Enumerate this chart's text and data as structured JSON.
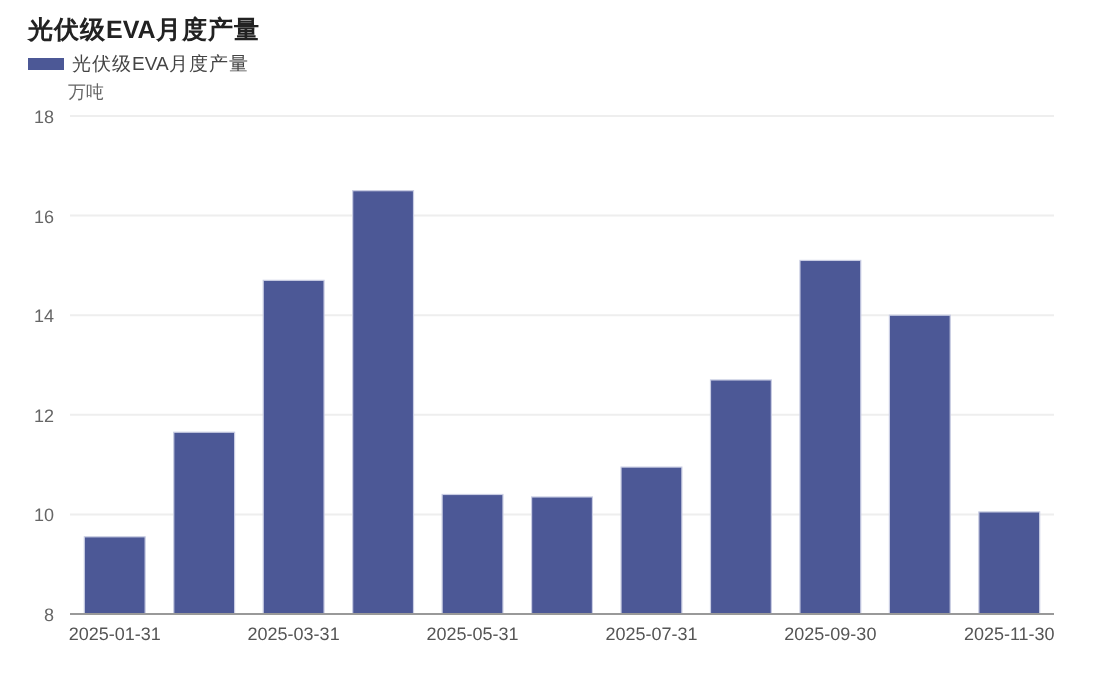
{
  "chart_data": {
    "type": "bar",
    "title": "光伏级EVA月度产量",
    "ylabel": "万吨",
    "categories": [
      "2025-01-31",
      null,
      "2025-03-31",
      null,
      "2025-05-31",
      null,
      "2025-07-31",
      null,
      "2025-09-30",
      null,
      "2025-11-30"
    ],
    "series": [
      {
        "name": "光伏级EVA月度产量",
        "color": "#4c5896",
        "values": [
          9.55,
          11.65,
          14.7,
          16.5,
          10.4,
          10.35,
          10.95,
          12.7,
          15.1,
          14.0,
          10.05
        ]
      }
    ],
    "ylim": [
      8,
      18
    ],
    "yticks": [
      8,
      10,
      12,
      14,
      16,
      18
    ],
    "grid": "y",
    "legend": "top left"
  }
}
